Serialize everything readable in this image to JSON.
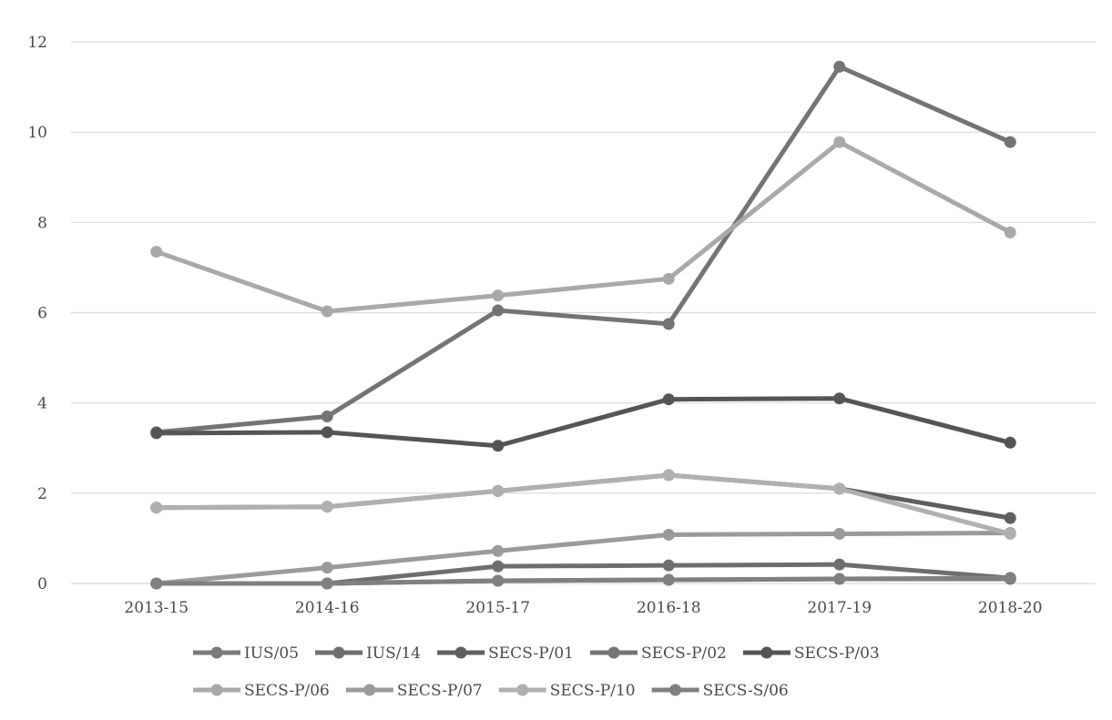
{
  "chart_data": {
    "type": "line",
    "title": "",
    "xlabel": "",
    "ylabel": "",
    "categories": [
      "2013-15",
      "2014-16",
      "2015-17",
      "2016-18",
      "2017-19",
      "2018-20"
    ],
    "ylim": [
      0,
      12
    ],
    "yticks": [
      "0",
      "2",
      "4",
      "6",
      "8",
      "10",
      "12"
    ],
    "grid": "horizontal",
    "legend_position": "bottom",
    "series": [
      {
        "name": "IUS/05",
        "color": "#7a7a7a",
        "values": [
          0,
          0,
          0.06,
          0.08,
          0.1,
          0.1
        ]
      },
      {
        "name": "IUS/14",
        "color": "#6e6e6e",
        "values": [
          0,
          0,
          0.38,
          0.4,
          0.42,
          0.12
        ]
      },
      {
        "name": "SECS-P/01",
        "color": "#5f5f5f",
        "values": [
          1.68,
          1.7,
          2.05,
          2.4,
          2.1,
          1.45
        ]
      },
      {
        "name": "SECS-P/02",
        "color": "#747474",
        "values": [
          3.35,
          3.7,
          6.05,
          5.75,
          11.45,
          9.78
        ]
      },
      {
        "name": "SECS-P/03",
        "color": "#555555",
        "values": [
          3.33,
          3.35,
          3.05,
          4.08,
          4.1,
          3.12
        ]
      },
      {
        "name": "SECS-P/06",
        "color": "#a9a9a9",
        "values": [
          7.35,
          6.03,
          6.38,
          6.75,
          9.78,
          7.78
        ]
      },
      {
        "name": "SECS-P/07",
        "color": "#9a9a9a",
        "values": [
          0,
          0.35,
          0.72,
          1.08,
          1.1,
          1.12
        ]
      },
      {
        "name": "SECS-P/10",
        "color": "#b0b0b0",
        "values": [
          1.68,
          1.7,
          2.05,
          2.4,
          2.1,
          1.1
        ]
      },
      {
        "name": "SECS-S/06",
        "color": "#808080",
        "values": [
          0,
          0,
          0.06,
          0.08,
          0.1,
          0.12
        ]
      }
    ]
  }
}
